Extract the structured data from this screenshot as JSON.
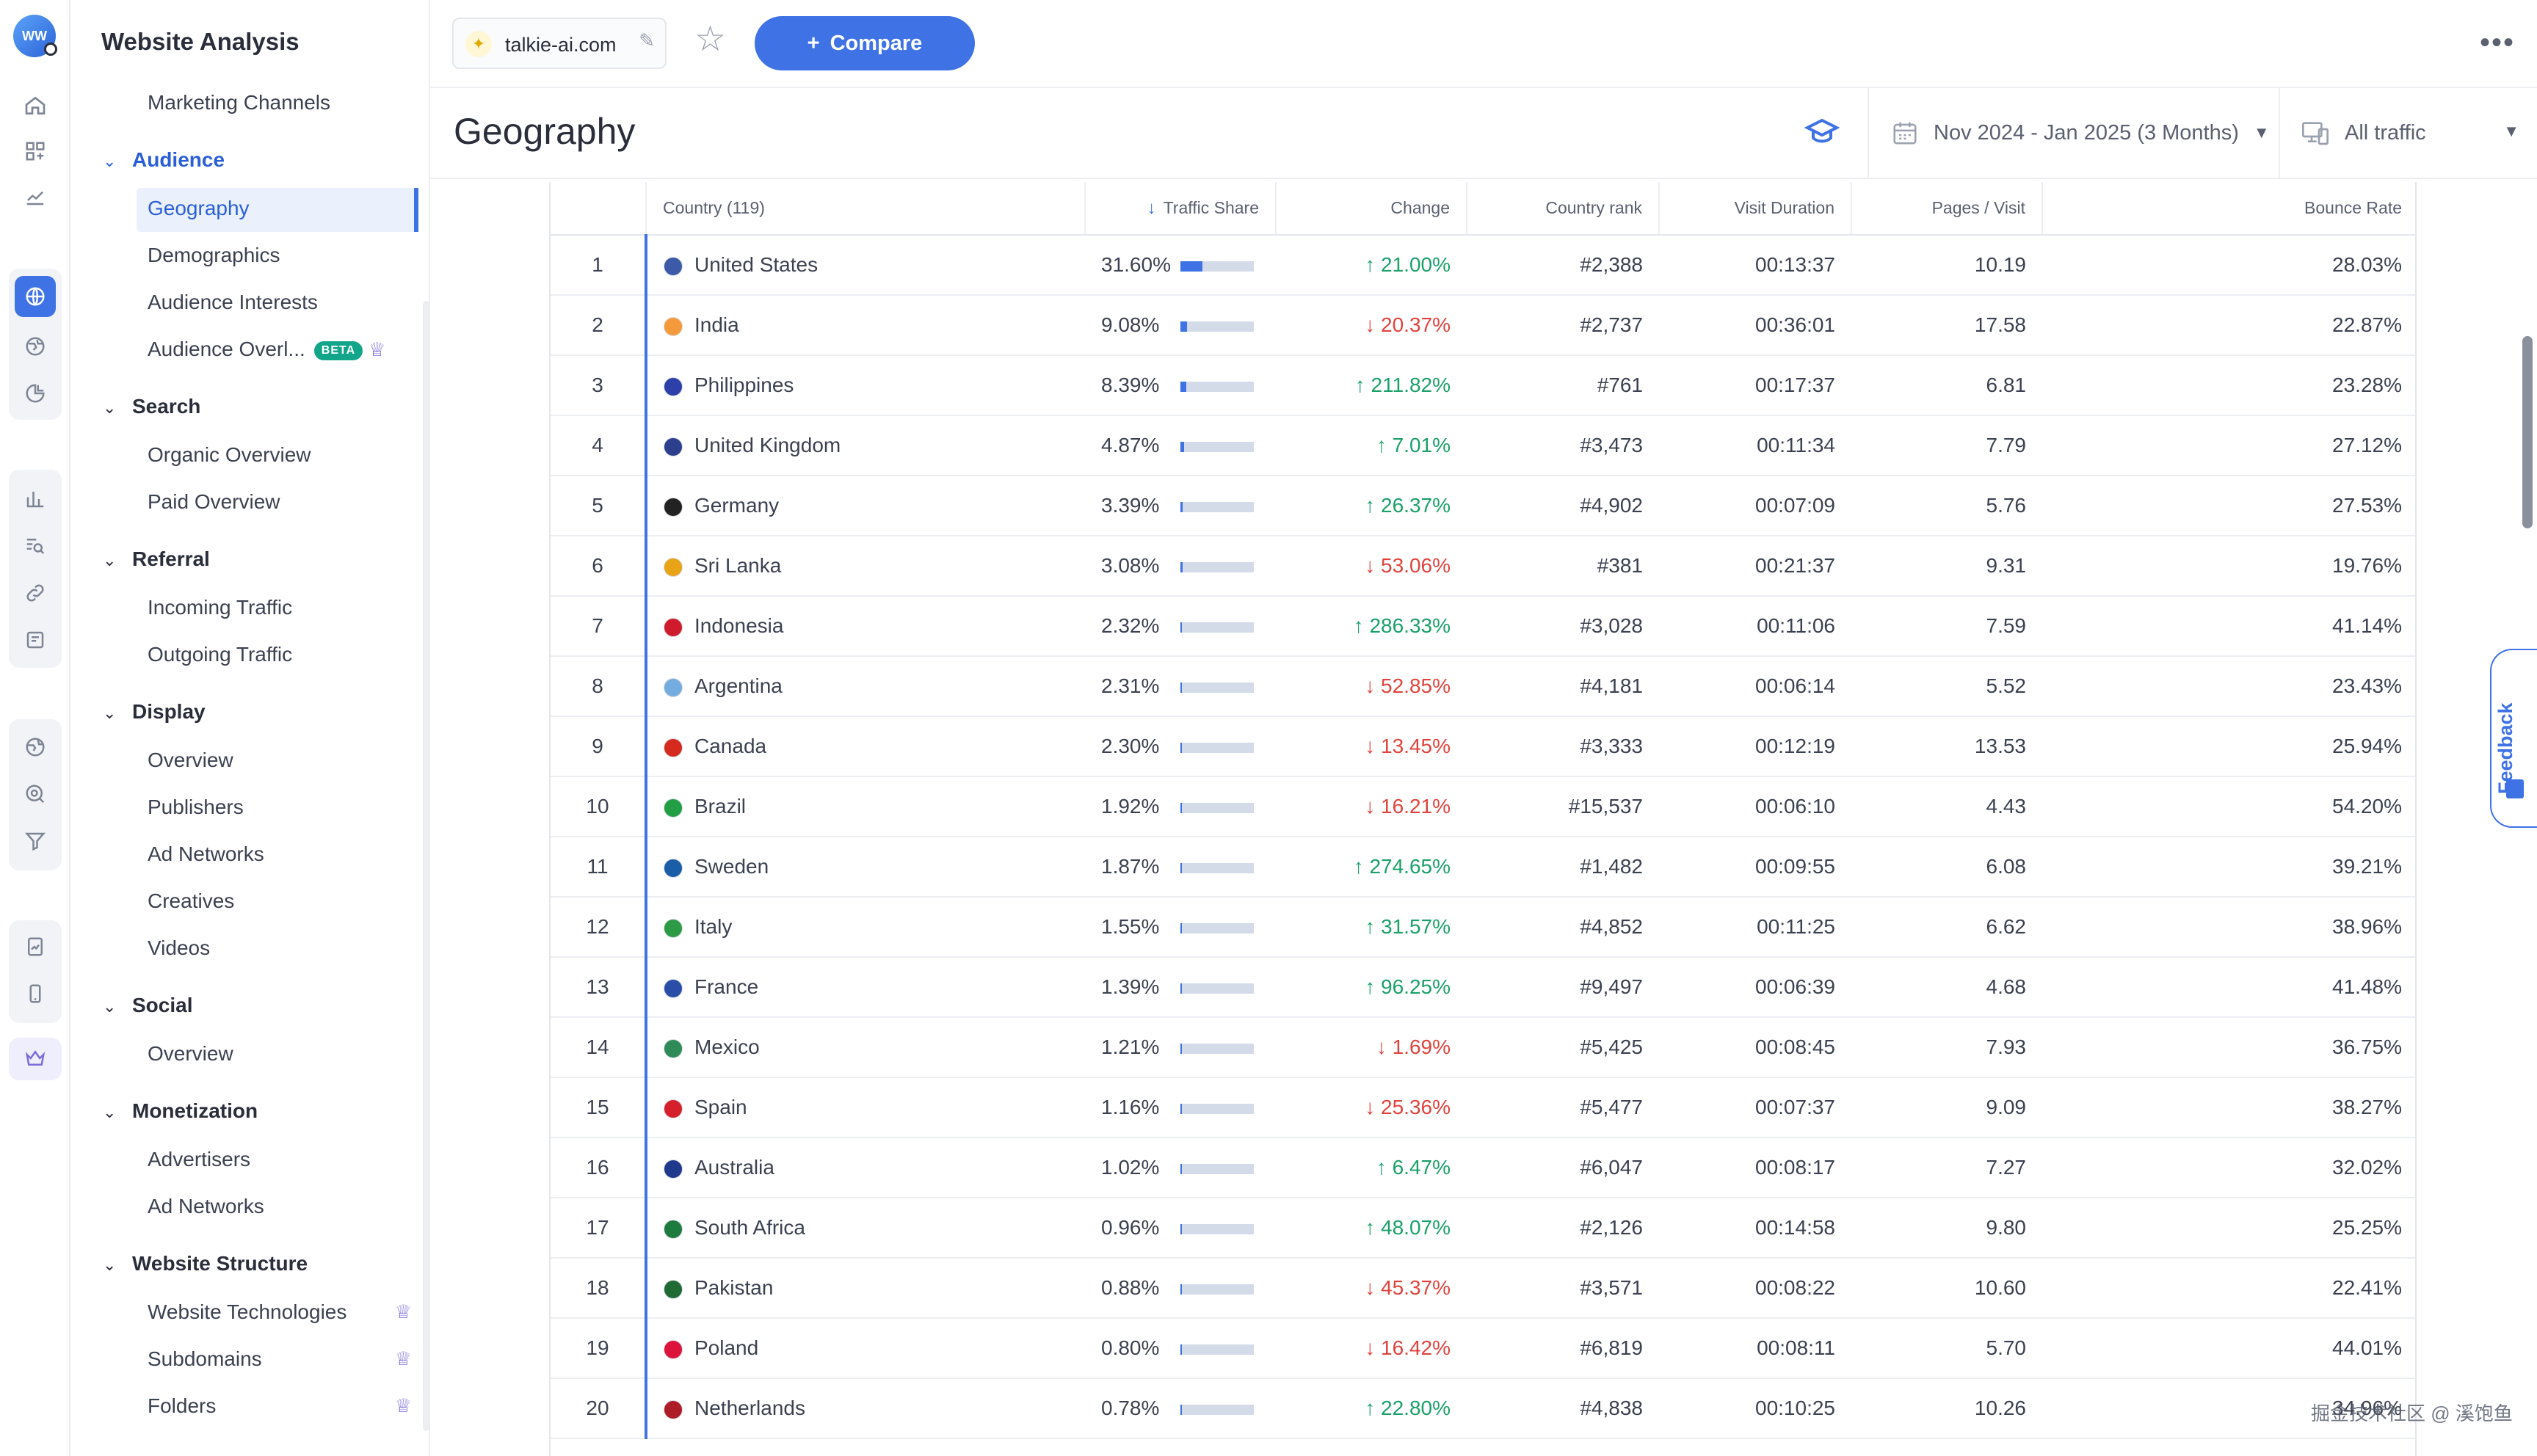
{
  "rail": {
    "logo_text": "WW",
    "icons": [
      "home-icon",
      "dashboard-icon",
      "trending-icon",
      "globe-icon",
      "audience-icon",
      "pie-chart-icon",
      "bar-chart-icon",
      "keyword-research-icon",
      "link-icon",
      "notes-icon",
      "display-globe-icon",
      "search-ads-icon",
      "filter-icon",
      "report-icon",
      "mobile-icon",
      "crown-icon"
    ]
  },
  "sidebar": {
    "title": "Website Analysis",
    "items": [
      {
        "label": "Marketing Channels",
        "type": "item"
      },
      {
        "label": "Audience",
        "type": "section"
      },
      {
        "label": "Geography",
        "type": "item",
        "active": true
      },
      {
        "label": "Demographics",
        "type": "item"
      },
      {
        "label": "Audience Interests",
        "type": "item"
      },
      {
        "label": "Audience Overl...",
        "type": "item",
        "badge": "BETA",
        "premium": true
      },
      {
        "label": "Search",
        "type": "section"
      },
      {
        "label": "Organic Overview",
        "type": "item"
      },
      {
        "label": "Paid Overview",
        "type": "item"
      },
      {
        "label": "Referral",
        "type": "section"
      },
      {
        "label": "Incoming Traffic",
        "type": "item"
      },
      {
        "label": "Outgoing Traffic",
        "type": "item"
      },
      {
        "label": "Display",
        "type": "section"
      },
      {
        "label": "Overview",
        "type": "item"
      },
      {
        "label": "Publishers",
        "type": "item"
      },
      {
        "label": "Ad Networks",
        "type": "item"
      },
      {
        "label": "Creatives",
        "type": "item"
      },
      {
        "label": "Videos",
        "type": "item"
      },
      {
        "label": "Social",
        "type": "section"
      },
      {
        "label": "Overview",
        "type": "item"
      },
      {
        "label": "Monetization",
        "type": "section"
      },
      {
        "label": "Advertisers",
        "type": "item"
      },
      {
        "label": "Ad Networks",
        "type": "item"
      },
      {
        "label": "Website Structure",
        "type": "section"
      },
      {
        "label": "Website Technologies",
        "type": "item",
        "premium": true
      },
      {
        "label": "Subdomains",
        "type": "item",
        "premium": true
      },
      {
        "label": "Folders",
        "type": "item",
        "premium": true
      }
    ]
  },
  "topbar": {
    "site": "talkie-ai.com",
    "compare_label": "Compare"
  },
  "header": {
    "title": "Geography",
    "date_range": "Nov 2024 - Jan 2025 (3 Months)",
    "traffic_filter": "All traffic"
  },
  "table": {
    "columns": [
      "",
      "Country (119)",
      "Traffic Share",
      "Change",
      "Country rank",
      "Visit Duration",
      "Pages / Visit",
      "Bounce Rate"
    ],
    "rows": [
      {
        "rank": "1",
        "country": "United States",
        "share": "31.60%",
        "share_value": 31.6,
        "change": "21.00%",
        "dir": "up",
        "country_rank": "#2,388",
        "duration": "00:13:37",
        "pages": "10.19",
        "bounce": "28.03%",
        "flag": "#3c5aa8"
      },
      {
        "rank": "2",
        "country": "India",
        "share": "9.08%",
        "share_value": 9.08,
        "change": "20.37%",
        "dir": "down",
        "country_rank": "#2,737",
        "duration": "00:36:01",
        "pages": "17.58",
        "bounce": "22.87%",
        "flag": "#f49a3a"
      },
      {
        "rank": "3",
        "country": "Philippines",
        "share": "8.39%",
        "share_value": 8.39,
        "change": "211.82%",
        "dir": "up",
        "country_rank": "#761",
        "duration": "00:17:37",
        "pages": "6.81",
        "bounce": "23.28%",
        "flag": "#2d3fa8"
      },
      {
        "rank": "4",
        "country": "United Kingdom",
        "share": "4.87%",
        "share_value": 4.87,
        "change": "7.01%",
        "dir": "up",
        "country_rank": "#3,473",
        "duration": "00:11:34",
        "pages": "7.79",
        "bounce": "27.12%",
        "flag": "#2b3f8c"
      },
      {
        "rank": "5",
        "country": "Germany",
        "share": "3.39%",
        "share_value": 3.39,
        "change": "26.37%",
        "dir": "up",
        "country_rank": "#4,902",
        "duration": "00:07:09",
        "pages": "5.76",
        "bounce": "27.53%",
        "flag": "#222222"
      },
      {
        "rank": "6",
        "country": "Sri Lanka",
        "share": "3.08%",
        "share_value": 3.08,
        "change": "53.06%",
        "dir": "down",
        "country_rank": "#381",
        "duration": "00:21:37",
        "pages": "9.31",
        "bounce": "19.76%",
        "flag": "#e8a317"
      },
      {
        "rank": "7",
        "country": "Indonesia",
        "share": "2.32%",
        "share_value": 2.32,
        "change": "286.33%",
        "dir": "up",
        "country_rank": "#3,028",
        "duration": "00:11:06",
        "pages": "7.59",
        "bounce": "41.14%",
        "flag": "#cf1b2b"
      },
      {
        "rank": "8",
        "country": "Argentina",
        "share": "2.31%",
        "share_value": 2.31,
        "change": "52.85%",
        "dir": "down",
        "country_rank": "#4,181",
        "duration": "00:06:14",
        "pages": "5.52",
        "bounce": "23.43%",
        "flag": "#74acdf"
      },
      {
        "rank": "9",
        "country": "Canada",
        "share": "2.30%",
        "share_value": 2.3,
        "change": "13.45%",
        "dir": "down",
        "country_rank": "#3,333",
        "duration": "00:12:19",
        "pages": "13.53",
        "bounce": "25.94%",
        "flag": "#d52b1e"
      },
      {
        "rank": "10",
        "country": "Brazil",
        "share": "1.92%",
        "share_value": 1.92,
        "change": "16.21%",
        "dir": "down",
        "country_rank": "#15,537",
        "duration": "00:06:10",
        "pages": "4.43",
        "bounce": "54.20%",
        "flag": "#229e45"
      },
      {
        "rank": "11",
        "country": "Sweden",
        "share": "1.87%",
        "share_value": 1.87,
        "change": "274.65%",
        "dir": "up",
        "country_rank": "#1,482",
        "duration": "00:09:55",
        "pages": "6.08",
        "bounce": "39.21%",
        "flag": "#1a5ea8"
      },
      {
        "rank": "12",
        "country": "Italy",
        "share": "1.55%",
        "share_value": 1.55,
        "change": "31.57%",
        "dir": "up",
        "country_rank": "#4,852",
        "duration": "00:11:25",
        "pages": "6.62",
        "bounce": "38.96%",
        "flag": "#2d9b46"
      },
      {
        "rank": "13",
        "country": "France",
        "share": "1.39%",
        "share_value": 1.39,
        "change": "96.25%",
        "dir": "up",
        "country_rank": "#9,497",
        "duration": "00:06:39",
        "pages": "4.68",
        "bounce": "41.48%",
        "flag": "#2a4ea8"
      },
      {
        "rank": "14",
        "country": "Mexico",
        "share": "1.21%",
        "share_value": 1.21,
        "change": "1.69%",
        "dir": "down",
        "country_rank": "#5,425",
        "duration": "00:08:45",
        "pages": "7.93",
        "bounce": "36.75%",
        "flag": "#2e8b57"
      },
      {
        "rank": "15",
        "country": "Spain",
        "share": "1.16%",
        "share_value": 1.16,
        "change": "25.36%",
        "dir": "down",
        "country_rank": "#5,477",
        "duration": "00:07:37",
        "pages": "9.09",
        "bounce": "38.27%",
        "flag": "#d5202b"
      },
      {
        "rank": "16",
        "country": "Australia",
        "share": "1.02%",
        "share_value": 1.02,
        "change": "6.47%",
        "dir": "up",
        "country_rank": "#6,047",
        "duration": "00:08:17",
        "pages": "7.27",
        "bounce": "32.02%",
        "flag": "#1f3a8c"
      },
      {
        "rank": "17",
        "country": "South Africa",
        "share": "0.96%",
        "share_value": 0.96,
        "change": "48.07%",
        "dir": "up",
        "country_rank": "#2,126",
        "duration": "00:14:58",
        "pages": "9.80",
        "bounce": "25.25%",
        "flag": "#1e7b3f"
      },
      {
        "rank": "18",
        "country": "Pakistan",
        "share": "0.88%",
        "share_value": 0.88,
        "change": "45.37%",
        "dir": "down",
        "country_rank": "#3,571",
        "duration": "00:08:22",
        "pages": "10.60",
        "bounce": "22.41%",
        "flag": "#1f6b33"
      },
      {
        "rank": "19",
        "country": "Poland",
        "share": "0.80%",
        "share_value": 0.8,
        "change": "16.42%",
        "dir": "down",
        "country_rank": "#6,819",
        "duration": "00:08:11",
        "pages": "5.70",
        "bounce": "44.01%",
        "flag": "#dc143c"
      },
      {
        "rank": "20",
        "country": "Netherlands",
        "share": "0.78%",
        "share_value": 0.78,
        "change": "22.80%",
        "dir": "up",
        "country_rank": "#4,838",
        "duration": "00:10:25",
        "pages": "10.26",
        "bounce": "34.96%",
        "flag": "#ae1c28"
      }
    ]
  },
  "feedback": {
    "label": "Feedback"
  },
  "watermark": {
    "text": "掘金技术社区 @ 溪饱鱼"
  },
  "colors": {
    "accent": "#3e72e5",
    "up": "#1aa069",
    "down": "#e0433d"
  }
}
